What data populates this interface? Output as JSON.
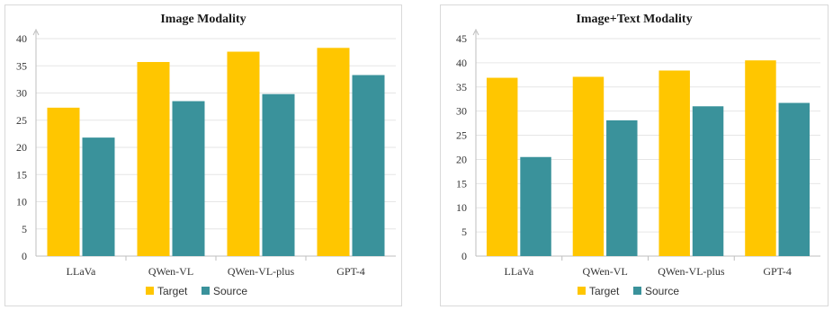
{
  "chart_data": [
    {
      "type": "bar",
      "title": "Image Modality",
      "categories": [
        "LLaVa",
        "QWen-VL",
        "QWen-VL-plus",
        "GPT-4"
      ],
      "series": [
        {
          "name": "Target",
          "color": "#ffc600",
          "values": [
            27.3,
            35.7,
            37.6,
            38.3
          ]
        },
        {
          "name": "Source",
          "color": "#3a929b",
          "values": [
            21.8,
            28.5,
            29.8,
            33.3
          ]
        }
      ],
      "ylim": [
        0,
        40
      ],
      "yticks": [
        0,
        5,
        10,
        15,
        20,
        25,
        30,
        35,
        40
      ],
      "grid": true,
      "legend": "bottom"
    },
    {
      "type": "bar",
      "title": "Image+Text Modality",
      "categories": [
        "LLaVa",
        "QWen-VL",
        "QWen-VL-plus",
        "GPT-4"
      ],
      "series": [
        {
          "name": "Target",
          "color": "#ffc600",
          "values": [
            36.9,
            37.1,
            38.4,
            40.5
          ]
        },
        {
          "name": "Source",
          "color": "#3a929b",
          "values": [
            20.5,
            28.1,
            31.0,
            31.7
          ]
        }
      ],
      "ylim": [
        0,
        45
      ],
      "yticks": [
        0,
        5,
        10,
        15,
        20,
        25,
        30,
        35,
        40,
        45
      ],
      "grid": true,
      "legend": "bottom"
    }
  ]
}
